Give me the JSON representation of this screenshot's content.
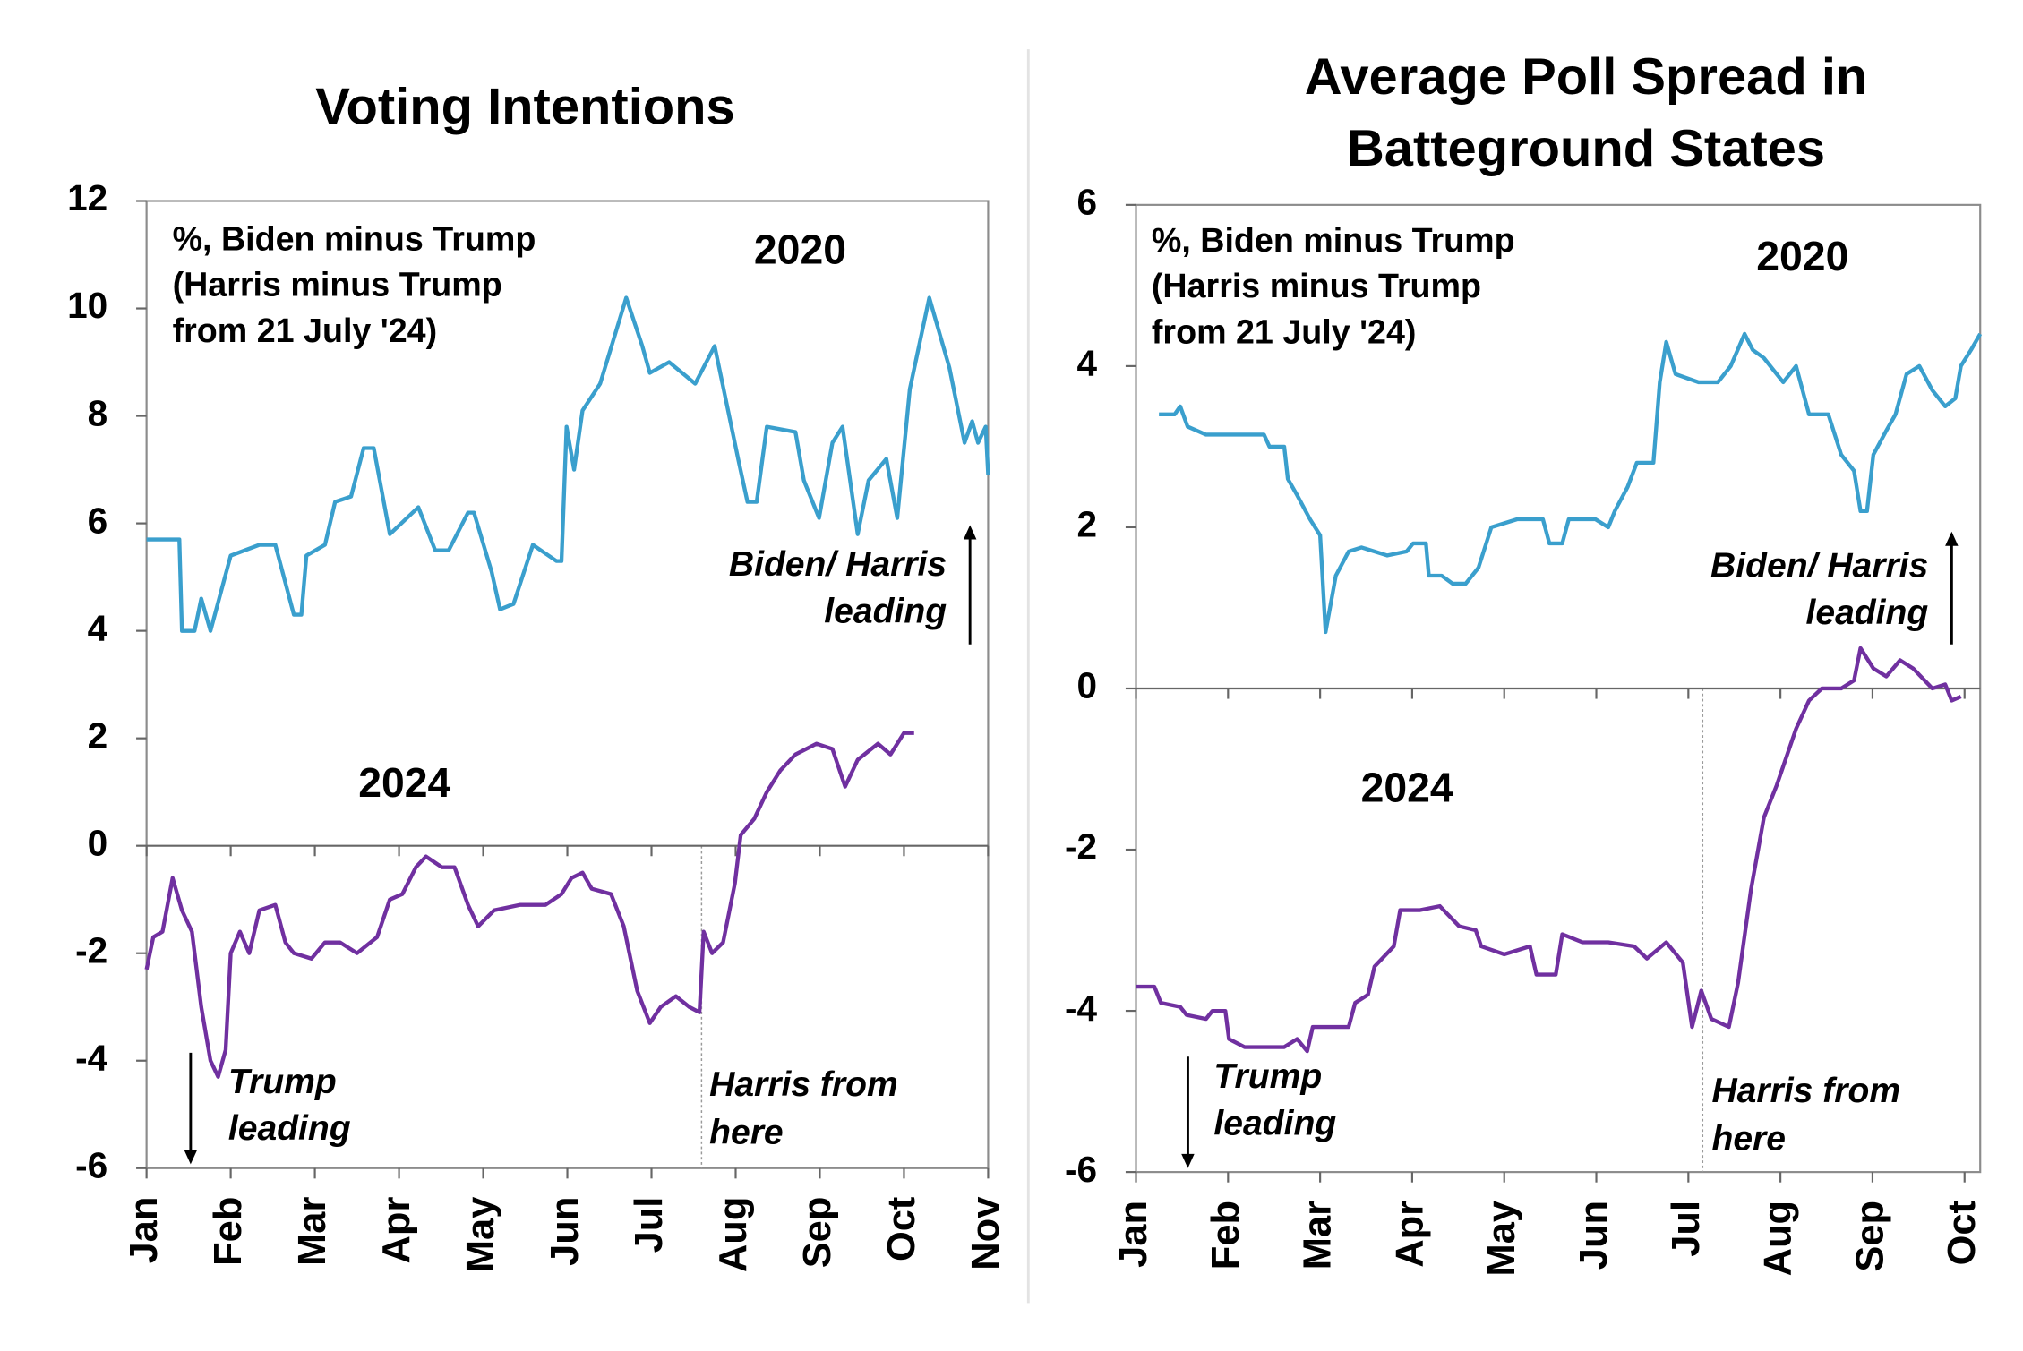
{
  "chart_data": [
    {
      "type": "line",
      "title": [
        "Voting Intentions"
      ],
      "xlim": [
        0,
        10
      ],
      "xticks": [
        {
          "value": 0,
          "label": "Jan"
        },
        {
          "value": 1,
          "label": "Feb"
        },
        {
          "value": 2,
          "label": "Mar"
        },
        {
          "value": 3,
          "label": "Apr"
        },
        {
          "value": 4,
          "label": "May"
        },
        {
          "value": 5,
          "label": "Jun"
        },
        {
          "value": 6,
          "label": "Jul"
        },
        {
          "value": 7,
          "label": "Aug"
        },
        {
          "value": 8,
          "label": "Sep"
        },
        {
          "value": 9,
          "label": "Oct"
        },
        {
          "value": 10,
          "label": "Nov"
        }
      ],
      "ylim": [
        -6,
        12
      ],
      "yticks": [
        -6,
        -4,
        -2,
        0,
        2,
        4,
        6,
        8,
        10,
        12
      ],
      "annotations": [
        [
          "%, Biden minus Trump",
          "(Harris minus Trump",
          "from 21 July '24)"
        ],
        [
          "Biden/ Harris",
          "leading"
        ],
        [
          "Trump",
          "leading"
        ],
        [
          "Harris from",
          "here"
        ]
      ],
      "series": [
        {
          "name": "2020",
          "color": "#3a9fcd",
          "x": [
            0,
            0.39,
            0.42,
            0.57,
            0.65,
            0.76,
            1.0,
            1.34,
            1.53,
            1.75,
            1.84,
            1.9,
            2.12,
            2.24,
            2.43,
            2.58,
            2.7,
            2.89,
            3.23,
            3.43,
            3.59,
            3.82,
            3.89,
            4.1,
            4.2,
            4.36,
            4.59,
            4.87,
            4.93,
            4.99,
            5.08,
            5.18,
            5.39,
            5.7,
            5.89,
            5.98,
            6.21,
            6.52,
            6.75,
            7.03,
            7.14,
            7.25,
            7.37,
            7.71,
            7.81,
            7.99,
            8.15,
            8.27,
            8.45,
            8.58,
            8.79,
            8.92,
            9.07,
            9.3,
            9.54,
            9.72,
            9.81,
            9.88,
            9.97,
            10.0
          ],
          "values": [
            5.7,
            5.7,
            4.0,
            4.0,
            4.6,
            4.0,
            5.4,
            5.6,
            5.6,
            4.3,
            4.3,
            5.4,
            5.6,
            6.4,
            6.5,
            7.4,
            7.4,
            5.8,
            6.3,
            5.5,
            5.5,
            6.2,
            6.2,
            5.1,
            4.4,
            4.5,
            5.6,
            5.3,
            5.3,
            7.8,
            7.0,
            8.1,
            8.6,
            10.2,
            9.3,
            8.8,
            9.0,
            8.6,
            9.3,
            7.2,
            6.4,
            6.4,
            7.8,
            7.7,
            6.8,
            6.1,
            7.5,
            7.8,
            5.8,
            6.8,
            7.2,
            6.1,
            8.5,
            10.2,
            8.9,
            7.5,
            7.9,
            7.5,
            7.8,
            6.9
          ]
        },
        {
          "name": "2024",
          "color": "#7030a0",
          "x": [
            0,
            0.08,
            0.19,
            0.31,
            0.42,
            0.54,
            0.65,
            0.76,
            0.85,
            0.94,
            1.0,
            1.11,
            1.22,
            1.34,
            1.53,
            1.65,
            1.75,
            1.96,
            2.12,
            2.3,
            2.5,
            2.74,
            2.89,
            3.04,
            3.2,
            3.32,
            3.51,
            3.66,
            3.82,
            3.94,
            4.13,
            4.44,
            4.74,
            4.93,
            5.05,
            5.18,
            5.29,
            5.52,
            5.67,
            5.83,
            5.98,
            6.11,
            6.29,
            6.45,
            6.57,
            6.62,
            6.72,
            6.85,
            6.99,
            7.06,
            7.22,
            7.37,
            7.53,
            7.71,
            7.96,
            8.15,
            8.3,
            8.45,
            8.69,
            8.84,
            9.0,
            9.12
          ],
          "values": [
            -2.3,
            -1.7,
            -1.6,
            -0.6,
            -1.2,
            -1.6,
            -3.0,
            -4.0,
            -4.3,
            -3.8,
            -2.0,
            -1.6,
            -2.0,
            -1.2,
            -1.1,
            -1.8,
            -2.0,
            -2.1,
            -1.8,
            -1.8,
            -2.0,
            -1.7,
            -1.0,
            -0.9,
            -0.4,
            -0.2,
            -0.4,
            -0.4,
            -1.1,
            -1.5,
            -1.2,
            -1.1,
            -1.1,
            -0.9,
            -0.6,
            -0.5,
            -0.8,
            -0.9,
            -1.5,
            -2.7,
            -3.3,
            -3.0,
            -2.8,
            -3.0,
            -3.1,
            -1.6,
            -2.0,
            -1.8,
            -0.7,
            0.2,
            0.5,
            1.0,
            1.4,
            1.7,
            1.9,
            1.8,
            1.1,
            1.6,
            1.9,
            1.7,
            2.1,
            2.1
          ]
        }
      ]
    },
    {
      "type": "line",
      "title": [
        "Average Poll Spread in",
        "Batteground States"
      ],
      "xlim": [
        0,
        9.17
      ],
      "xticks": [
        {
          "value": 0,
          "label": "Jan"
        },
        {
          "value": 1,
          "label": "Feb"
        },
        {
          "value": 2,
          "label": "Mar"
        },
        {
          "value": 3,
          "label": "Apr"
        },
        {
          "value": 4,
          "label": "May"
        },
        {
          "value": 5,
          "label": "Jun"
        },
        {
          "value": 6,
          "label": "Jul"
        },
        {
          "value": 7,
          "label": "Aug"
        },
        {
          "value": 8,
          "label": "Sep"
        },
        {
          "value": 9,
          "label": "Oct"
        }
      ],
      "ylim": [
        -6,
        6
      ],
      "yticks": [
        -6,
        -4,
        -2,
        0,
        2,
        4,
        6
      ],
      "annotations": [
        [
          "%, Biden minus Trump",
          "(Harris minus Trump",
          "from 21 July '24)"
        ],
        [
          "Biden/ Harris",
          "leading"
        ],
        [
          "Trump",
          "leading"
        ],
        [
          "Harris from",
          "here"
        ]
      ],
      "series": [
        {
          "name": "2020",
          "color": "#3a9fcd",
          "x": [
            0.25,
            0.42,
            0.48,
            0.56,
            0.76,
            1.39,
            1.45,
            1.61,
            1.65,
            1.75,
            1.89,
            2.0,
            2.06,
            2.17,
            2.31,
            2.45,
            2.73,
            2.94,
            3.01,
            3.15,
            3.18,
            3.32,
            3.44,
            3.58,
            3.72,
            3.86,
            4.14,
            4.42,
            4.49,
            4.63,
            4.7,
            4.99,
            5.13,
            5.2,
            5.34,
            5.44,
            5.62,
            5.69,
            5.76,
            5.86,
            6.11,
            6.32,
            6.46,
            6.61,
            6.7,
            6.82,
            7.03,
            7.17,
            7.31,
            7.52,
            7.66,
            7.8,
            7.87,
            7.94,
            8.01,
            8.15,
            8.25,
            8.37,
            8.51,
            8.65,
            8.79,
            8.9,
            8.96,
            9.07,
            9.17
          ],
          "values": [
            3.4,
            3.4,
            3.5,
            3.25,
            3.15,
            3.15,
            3.0,
            3.0,
            2.6,
            2.4,
            2.1,
            1.9,
            0.7,
            1.4,
            1.7,
            1.75,
            1.65,
            1.7,
            1.8,
            1.8,
            1.4,
            1.4,
            1.3,
            1.3,
            1.5,
            2.0,
            2.1,
            2.1,
            1.8,
            1.8,
            2.1,
            2.1,
            2.0,
            2.2,
            2.5,
            2.8,
            2.8,
            3.8,
            4.3,
            3.9,
            3.8,
            3.8,
            4.0,
            4.4,
            4.2,
            4.1,
            3.8,
            4.0,
            3.4,
            3.4,
            2.9,
            2.7,
            2.2,
            2.2,
            2.9,
            3.2,
            3.4,
            3.9,
            4.0,
            3.7,
            3.5,
            3.6,
            4.0,
            4.2,
            4.4
          ]
        },
        {
          "name": "2024",
          "color": "#7030a0",
          "x": [
            0,
            0.2,
            0.27,
            0.48,
            0.55,
            0.76,
            0.83,
            0.97,
            1.01,
            1.18,
            1.61,
            1.75,
            1.86,
            1.92,
            2.31,
            2.38,
            2.52,
            2.59,
            2.8,
            2.87,
            3.08,
            3.3,
            3.51,
            3.69,
            3.75,
            4.0,
            4.28,
            4.35,
            4.56,
            4.63,
            4.85,
            5.13,
            5.41,
            5.55,
            5.76,
            5.94,
            6.04,
            6.14,
            6.25,
            6.44,
            6.54,
            6.68,
            6.82,
            6.96,
            7.17,
            7.31,
            7.45,
            7.66,
            7.8,
            7.87,
            8.01,
            8.15,
            8.3,
            8.44,
            8.65,
            8.79,
            8.86,
            8.96
          ],
          "values": [
            -3.7,
            -3.7,
            -3.9,
            -3.95,
            -4.05,
            -4.1,
            -4.0,
            -4.0,
            -4.35,
            -4.45,
            -4.45,
            -4.35,
            -4.5,
            -4.2,
            -4.2,
            -3.9,
            -3.8,
            -3.45,
            -3.2,
            -2.75,
            -2.75,
            -2.7,
            -2.95,
            -3.0,
            -3.2,
            -3.3,
            -3.2,
            -3.55,
            -3.55,
            -3.05,
            -3.15,
            -3.15,
            -3.2,
            -3.35,
            -3.15,
            -3.4,
            -4.2,
            -3.75,
            -4.1,
            -4.2,
            -3.65,
            -2.5,
            -1.6,
            -1.2,
            -0.5,
            -0.15,
            0.0,
            0.0,
            0.1,
            0.5,
            0.25,
            0.15,
            0.35,
            0.25,
            0.0,
            0.05,
            -0.15,
            -0.1
          ]
        }
      ]
    }
  ]
}
